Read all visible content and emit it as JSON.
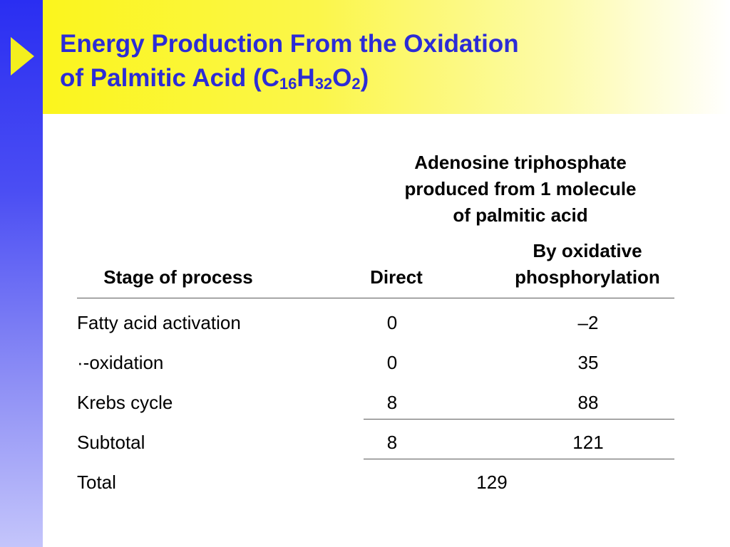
{
  "title": {
    "line1": "Energy Production From the Oxidation",
    "line2_prefix": "of Palmitic Acid (C",
    "sub1": "16",
    "h": "H",
    "sub2": "32",
    "o": "O",
    "sub3": "2",
    "close": ")"
  },
  "table": {
    "group_header": [
      "Adenosine triphosphate",
      "produced from 1 molecule",
      "of palmitic acid"
    ],
    "col_stage": "Stage of process",
    "col_direct": "Direct",
    "col_oxphos": [
      "By oxidative",
      "phosphorylation"
    ],
    "rows": [
      {
        "stage": "Fatty acid activation",
        "direct": "0",
        "oxphos": "–2"
      },
      {
        "stage": "·-oxidation",
        "direct": "0",
        "oxphos": "35"
      },
      {
        "stage": "Krebs cycle",
        "direct": "8",
        "oxphos": "88"
      },
      {
        "stage": "Subtotal",
        "direct": "8",
        "oxphos": "121"
      }
    ],
    "total_label": "Total",
    "total_value": "129"
  },
  "colors": {
    "title": "#2c2cd6",
    "left_bar": "#2a2ef2",
    "title_band": "#fbf51d",
    "arrow": "#f3ef1e"
  }
}
